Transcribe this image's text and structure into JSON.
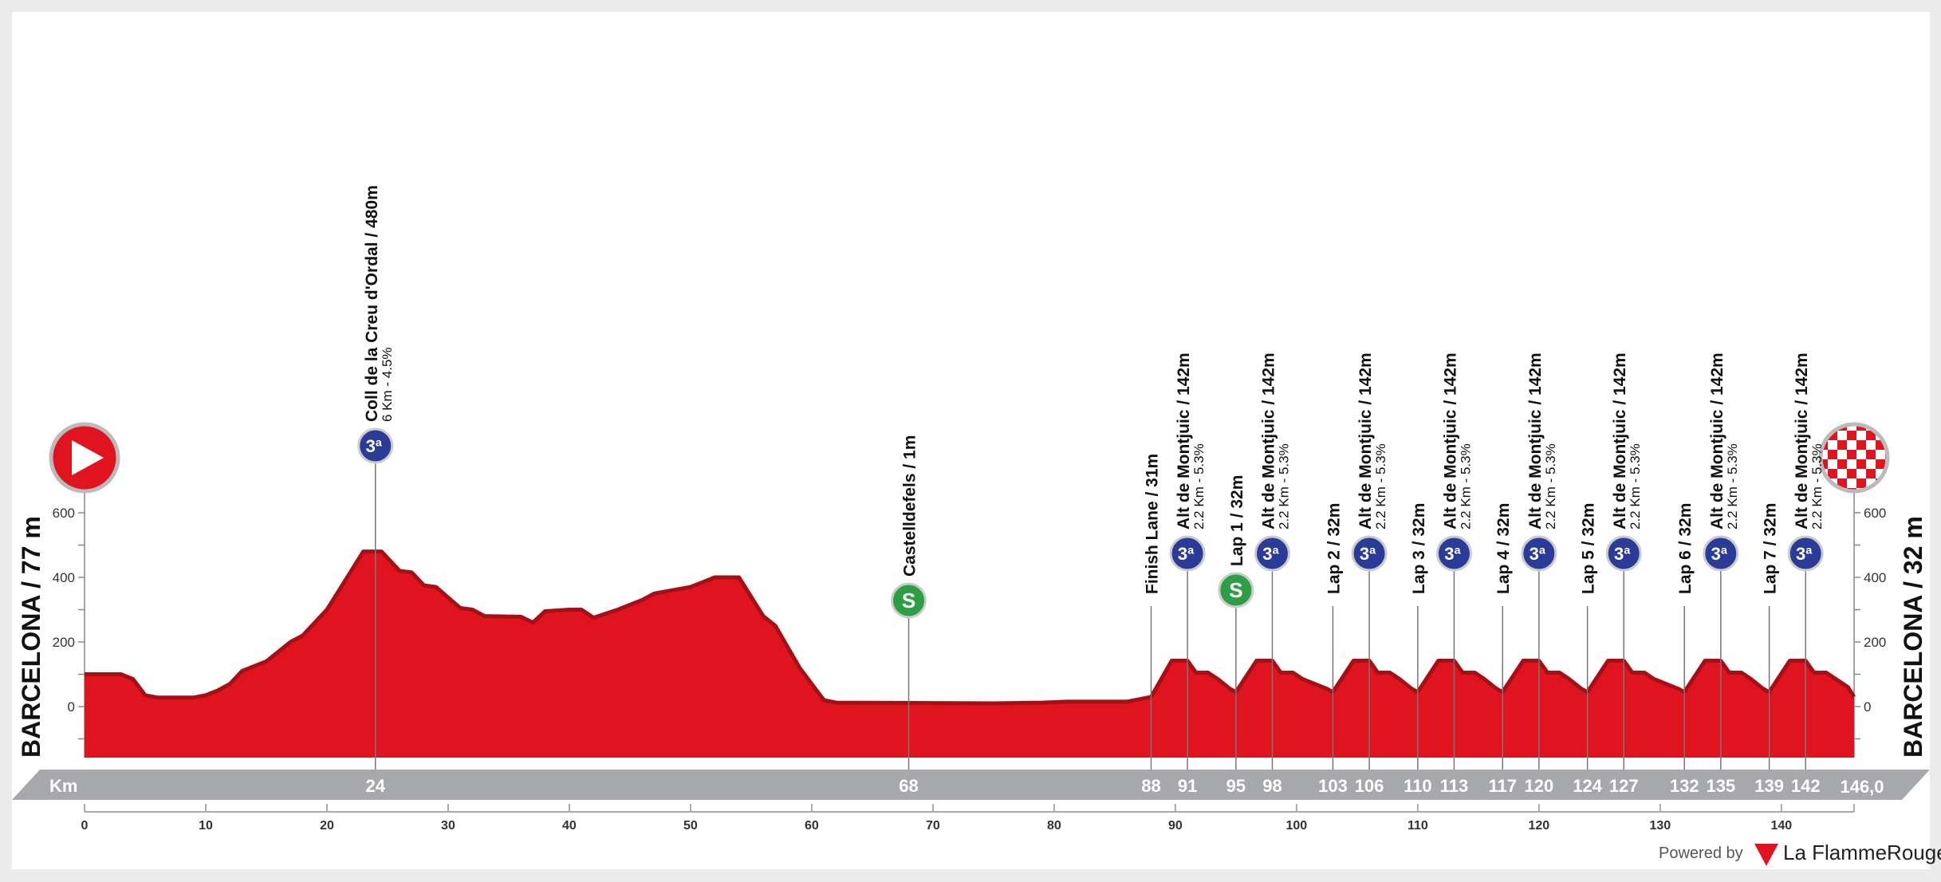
{
  "colors": {
    "profile": "#e0141e",
    "profile_dark": "#a50f16",
    "band": "#a6a8ab",
    "climb_icon": "#2b3b98",
    "sprint_icon": "#2e9e44",
    "start_icon": "#e0141e"
  },
  "chart_data": {
    "type": "area",
    "xlabel": "Km",
    "xlim": [
      0,
      146
    ],
    "ylim": [
      -100,
      600
    ],
    "y_ticks": [
      0,
      200,
      400,
      600
    ],
    "x_ticks": [
      0,
      10,
      20,
      30,
      40,
      50,
      60,
      70,
      80,
      90,
      100,
      110,
      120,
      130,
      140
    ],
    "start_label": "BARCELONA / 77 m",
    "finish_label": "BARCELONA / 32 m",
    "profile": [
      [
        0,
        100
      ],
      [
        3,
        100
      ],
      [
        4,
        85
      ],
      [
        5,
        35
      ],
      [
        6,
        28
      ],
      [
        9,
        28
      ],
      [
        10,
        35
      ],
      [
        11,
        50
      ],
      [
        12,
        70
      ],
      [
        13,
        110
      ],
      [
        15,
        140
      ],
      [
        17,
        200
      ],
      [
        18,
        220
      ],
      [
        20,
        300
      ],
      [
        21,
        360
      ],
      [
        22,
        420
      ],
      [
        23,
        480
      ],
      [
        24.5,
        480
      ],
      [
        26,
        420
      ],
      [
        27,
        415
      ],
      [
        28,
        375
      ],
      [
        29,
        370
      ],
      [
        31,
        305
      ],
      [
        32,
        300
      ],
      [
        33,
        280
      ],
      [
        36,
        278
      ],
      [
        37,
        260
      ],
      [
        38,
        295
      ],
      [
        40,
        300
      ],
      [
        41,
        300
      ],
      [
        42,
        275
      ],
      [
        44,
        300
      ],
      [
        46,
        330
      ],
      [
        47,
        350
      ],
      [
        50,
        370
      ],
      [
        52,
        400
      ],
      [
        54,
        400
      ],
      [
        56,
        280
      ],
      [
        57,
        250
      ],
      [
        59,
        120
      ],
      [
        61,
        20
      ],
      [
        62,
        12
      ],
      [
        75,
        10
      ],
      [
        79,
        12
      ],
      [
        81,
        15
      ],
      [
        86,
        15
      ],
      [
        88,
        30
      ],
      [
        89.7,
        142
      ],
      [
        91,
        142
      ],
      [
        91.7,
        105
      ],
      [
        92.7,
        105
      ],
      [
        93.5,
        85
      ],
      [
        94.5,
        55
      ],
      [
        95,
        45
      ],
      [
        96.7,
        142
      ],
      [
        98,
        142
      ],
      [
        98.7,
        105
      ],
      [
        99.7,
        105
      ],
      [
        100.5,
        85
      ],
      [
        102.5,
        55
      ],
      [
        103,
        45
      ],
      [
        104.7,
        142
      ],
      [
        106,
        142
      ],
      [
        106.7,
        105
      ],
      [
        107.7,
        105
      ],
      [
        108.5,
        85
      ],
      [
        109.5,
        55
      ],
      [
        110,
        45
      ],
      [
        111.7,
        142
      ],
      [
        113,
        142
      ],
      [
        113.7,
        105
      ],
      [
        114.7,
        105
      ],
      [
        115.5,
        85
      ],
      [
        116.5,
        55
      ],
      [
        117,
        45
      ],
      [
        118.7,
        142
      ],
      [
        120,
        142
      ],
      [
        120.7,
        105
      ],
      [
        121.7,
        105
      ],
      [
        122.5,
        85
      ],
      [
        123.5,
        55
      ],
      [
        124,
        45
      ],
      [
        125.7,
        142
      ],
      [
        127,
        142
      ],
      [
        127.7,
        105
      ],
      [
        128.7,
        105
      ],
      [
        129.5,
        85
      ],
      [
        131.5,
        55
      ],
      [
        132,
        45
      ],
      [
        133.7,
        142
      ],
      [
        135,
        142
      ],
      [
        135.7,
        105
      ],
      [
        136.7,
        105
      ],
      [
        137.5,
        85
      ],
      [
        138.5,
        55
      ],
      [
        139,
        45
      ],
      [
        140.7,
        142
      ],
      [
        142,
        142
      ],
      [
        142.7,
        105
      ],
      [
        143.7,
        105
      ],
      [
        144.5,
        85
      ],
      [
        145.5,
        60
      ],
      [
        146,
        30
      ]
    ],
    "km_band_labels": [
      "24",
      "68",
      "88",
      "91",
      "95",
      "98",
      "103",
      "106",
      "110",
      "113",
      "117",
      "120",
      "124",
      "127",
      "132",
      "135",
      "139",
      "142"
    ],
    "km_band_values": [
      24,
      68,
      88,
      91,
      95,
      98,
      103,
      106,
      110,
      113,
      117,
      120,
      124,
      127,
      132,
      135,
      139,
      142
    ],
    "total_distance": "146,0",
    "markers": [
      {
        "km": 24,
        "type": "climb",
        "category": "3ª",
        "label": "Coll de la Creu d'Ordal / 480m",
        "sub": "6 Km - 4.5%"
      },
      {
        "km": 68,
        "type": "sprint",
        "label": "Castelldefels / 1m"
      },
      {
        "km": 88,
        "type": "line",
        "label": "Finish Lane / 31m"
      },
      {
        "km": 91,
        "type": "climb",
        "category": "3ª",
        "label": "Alt de Montjuic / 142m",
        "sub": "2.2 Km - 5.3%"
      },
      {
        "km": 95,
        "type": "sprint",
        "label": "Lap 1 / 32m"
      },
      {
        "km": 98,
        "type": "climb",
        "category": "3ª",
        "label": "Alt de Montjuic / 142m",
        "sub": "2.2 Km - 5.3%"
      },
      {
        "km": 103,
        "type": "line",
        "label": "Lap 2 / 32m"
      },
      {
        "km": 106,
        "type": "climb",
        "category": "3ª",
        "label": "Alt de Montjuic / 142m",
        "sub": "2.2 Km - 5.3%"
      },
      {
        "km": 110,
        "type": "line",
        "label": "Lap 3 / 32m"
      },
      {
        "km": 113,
        "type": "climb",
        "category": "3ª",
        "label": "Alt de Montjuic / 142m",
        "sub": "2.2 Km - 5.3%"
      },
      {
        "km": 117,
        "type": "line",
        "label": "Lap 4 / 32m"
      },
      {
        "km": 120,
        "type": "climb",
        "category": "3ª",
        "label": "Alt de Montjuic / 142m",
        "sub": "2.2 Km - 5.3%"
      },
      {
        "km": 124,
        "type": "line",
        "label": "Lap 5 / 32m"
      },
      {
        "km": 127,
        "type": "climb",
        "category": "3ª",
        "label": "Alt de Montjuic / 142m",
        "sub": "2.2 Km - 5.3%"
      },
      {
        "km": 132,
        "type": "line",
        "label": "Lap 6 / 32m"
      },
      {
        "km": 135,
        "type": "climb",
        "category": "3ª",
        "label": "Alt de Montjuic / 142m",
        "sub": "2.2 Km - 5.3%"
      },
      {
        "km": 139,
        "type": "line",
        "label": "Lap 7 / 32m"
      },
      {
        "km": 142,
        "type": "climb",
        "category": "3ª",
        "label": "Alt de Montjuic / 142m",
        "sub": "2.2 Km - 5.3%"
      }
    ]
  },
  "branding": {
    "powered_by": "Powered by",
    "logo_text": "La FlammeRouge",
    "logo_mark": "1"
  }
}
